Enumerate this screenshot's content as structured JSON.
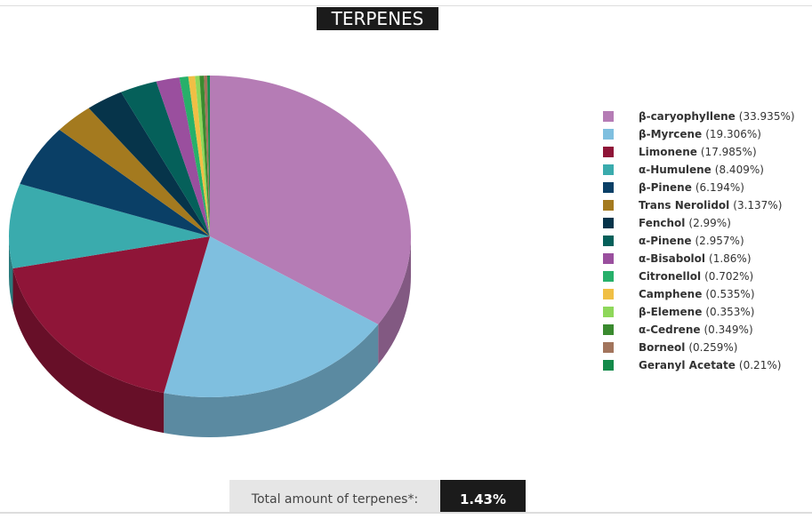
{
  "chart_data": {
    "type": "pie3d",
    "title": "TERPENES",
    "categories": [
      "β-caryophyllene",
      "β-Myrcene",
      "Limonene",
      "α-Humulene",
      "β-Pinene",
      "Trans Nerolidol",
      "Fenchol",
      "α-Pinene",
      "α-Bisabolol",
      "Citronellol",
      "Camphene",
      "β-Elemene",
      "α-Cedrene",
      "Borneol",
      "Geranyl Acetate"
    ],
    "values": [
      33.935,
      19.306,
      17.985,
      8.409,
      6.194,
      3.137,
      2.99,
      2.957,
      1.86,
      0.702,
      0.535,
      0.353,
      0.349,
      0.259,
      0.21
    ],
    "value_labels": [
      "(33.935%)",
      "(19.306%)",
      "(17.985%)",
      "(8.409%)",
      "(6.194%)",
      "(3.137%)",
      "(2.99%)",
      "(2.957%)",
      "(1.86%)",
      "(0.702%)",
      "(0.535%)",
      "(0.353%)",
      "(0.349%)",
      "(0.259%)",
      "(0.21%)"
    ],
    "colors": [
      "#b57cb5",
      "#7fbfdf",
      "#8f1538",
      "#3aabad",
      "#0a3f66",
      "#a47a1f",
      "#06344a",
      "#05605a",
      "#9a4f9e",
      "#27b06a",
      "#f0bf45",
      "#8ed75a",
      "#3a8a2f",
      "#a2745c",
      "#138a4a"
    ],
    "legend": "right"
  },
  "footer": {
    "label": "Total amount of terpenes*:",
    "value": "1.43%"
  }
}
